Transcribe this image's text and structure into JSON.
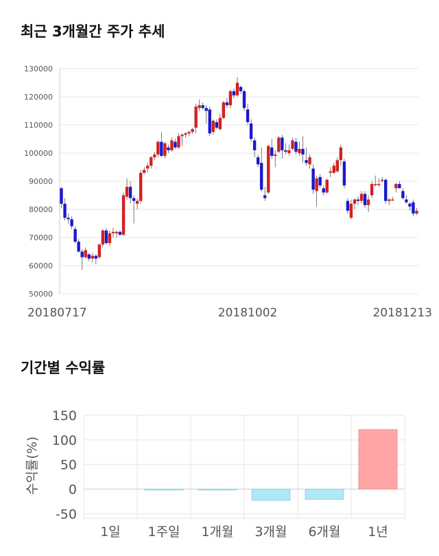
{
  "sections": {
    "price_trend_title": "최근 3개월간 주가 추세",
    "returns_title": "기간별 수익률"
  },
  "colors": {
    "up": "#d42020",
    "down": "#1a1acc",
    "wick": "#555555",
    "grid": "#e5e5e5",
    "axis_text": "#555555",
    "positive_bar": "#ffa5a5",
    "negative_bar": "#b0e8f5"
  },
  "chart_data": [
    {
      "type": "candlestick",
      "title": "최근 3개월간 주가 추세",
      "ylim": [
        50000,
        130000
      ],
      "yticks": [
        50000,
        60000,
        70000,
        80000,
        90000,
        100000,
        110000,
        120000,
        130000
      ],
      "x_tick_labels": [
        {
          "index": 0,
          "label": "20180717"
        },
        {
          "index": 54,
          "label": "20181002"
        },
        {
          "index": 103,
          "label": "20181213"
        }
      ],
      "grid": true,
      "ohlc": [
        [
          87500,
          88000,
          80500,
          82000
        ],
        [
          82000,
          84000,
          76000,
          77000
        ],
        [
          77000,
          78500,
          75000,
          76500
        ],
        [
          76500,
          77500,
          73000,
          74000
        ],
        [
          73000,
          74000,
          68000,
          68500
        ],
        [
          68500,
          69500,
          64500,
          65000
        ],
        [
          65000,
          66000,
          58500,
          63000
        ],
        [
          63000,
          66500,
          62500,
          65500
        ],
        [
          64000,
          64500,
          61500,
          62500
        ],
        [
          62500,
          64500,
          61000,
          63500
        ],
        [
          63500,
          64000,
          60500,
          62500
        ],
        [
          63000,
          68000,
          62500,
          67500
        ],
        [
          67500,
          73000,
          66500,
          72500
        ],
        [
          72500,
          73500,
          67500,
          68000
        ],
        [
          68000,
          72500,
          67000,
          71500
        ],
        [
          71500,
          73500,
          70000,
          72000
        ],
        [
          71500,
          72500,
          70000,
          72000
        ],
        [
          72000,
          72500,
          70500,
          71000
        ],
        [
          71000,
          86000,
          70500,
          85000
        ],
        [
          84500,
          91000,
          83500,
          88000
        ],
        [
          88000,
          90000,
          82000,
          84000
        ],
        [
          84000,
          85000,
          75000,
          83000
        ],
        [
          82000,
          84000,
          80000,
          83000
        ],
        [
          83000,
          94000,
          82000,
          93000
        ],
        [
          93000,
          95000,
          92500,
          94000
        ],
        [
          94500,
          96500,
          93000,
          95500
        ],
        [
          95500,
          99000,
          94500,
          98500
        ],
        [
          98500,
          100500,
          97500,
          99500
        ],
        [
          99500,
          104500,
          98500,
          104000
        ],
        [
          104000,
          107500,
          98500,
          99000
        ],
        [
          99000,
          104000,
          98000,
          103500
        ],
        [
          102000,
          103000,
          100000,
          101000
        ],
        [
          101000,
          105500,
          100500,
          104500
        ],
        [
          104000,
          105000,
          101500,
          102000
        ],
        [
          102000,
          107000,
          101500,
          106000
        ],
        [
          106000,
          107000,
          102500,
          106500
        ],
        [
          106500,
          107500,
          105500,
          107000
        ],
        [
          107000,
          108000,
          106000,
          107500
        ],
        [
          107500,
          109000,
          107000,
          108500
        ],
        [
          109000,
          117500,
          107000,
          116500
        ],
        [
          116000,
          119000,
          115000,
          117000
        ],
        [
          117000,
          118000,
          115500,
          116000
        ],
        [
          116000,
          117000,
          110500,
          115000
        ],
        [
          115500,
          116500,
          106000,
          107000
        ],
        [
          107500,
          112000,
          106500,
          111500
        ],
        [
          111000,
          112000,
          108500,
          109000
        ],
        [
          108500,
          114000,
          108000,
          112500
        ],
        [
          112500,
          118500,
          112000,
          118000
        ],
        [
          118000,
          119500,
          116000,
          117000
        ],
        [
          117000,
          122500,
          116000,
          122000
        ],
        [
          122000,
          123000,
          119500,
          120500
        ],
        [
          120500,
          127000,
          120000,
          125000
        ],
        [
          123500,
          124000,
          121000,
          122000
        ],
        [
          122000,
          122500,
          115000,
          116000
        ],
        [
          115500,
          117500,
          110000,
          111000
        ],
        [
          110500,
          112000,
          104000,
          105000
        ],
        [
          104500,
          105500,
          98500,
          101000
        ],
        [
          98500,
          99500,
          95000,
          96000
        ],
        [
          96500,
          102000,
          86500,
          87000
        ],
        [
          85000,
          88000,
          83000,
          84000
        ],
        [
          86000,
          103000,
          85500,
          102500
        ],
        [
          102000,
          105000,
          98000,
          99000
        ],
        [
          99000,
          101000,
          95000,
          99500
        ],
        [
          100500,
          106000,
          100000,
          105500
        ],
        [
          105500,
          106500,
          98000,
          101000
        ],
        [
          101000,
          103500,
          99500,
          100500
        ],
        [
          100000,
          103000,
          99000,
          101000
        ],
        [
          101500,
          105500,
          101000,
          104500
        ],
        [
          104000,
          105500,
          99500,
          100500
        ],
        [
          100000,
          104000,
          99000,
          101500
        ],
        [
          101500,
          106000,
          96500,
          99500
        ],
        [
          97500,
          102000,
          95500,
          96500
        ],
        [
          96000,
          99500,
          94500,
          98500
        ],
        [
          94500,
          96000,
          85500,
          87000
        ],
        [
          86500,
          92000,
          81000,
          91000
        ],
        [
          91500,
          92500,
          87500,
          88500
        ],
        [
          87500,
          88500,
          85000,
          86000
        ],
        [
          86000,
          91000,
          85500,
          90500
        ],
        [
          93000,
          95000,
          91500,
          93500
        ],
        [
          93000,
          96500,
          92500,
          95500
        ],
        [
          93500,
          98500,
          93000,
          97500
        ],
        [
          97500,
          103000,
          95500,
          102000
        ],
        [
          97000,
          98000,
          87500,
          88500
        ],
        [
          83000,
          84000,
          78500,
          79500
        ],
        [
          77000,
          83500,
          76500,
          82000
        ],
        [
          82000,
          84000,
          80000,
          83500
        ],
        [
          83500,
          84500,
          81500,
          83000
        ],
        [
          83000,
          86500,
          82000,
          85500
        ],
        [
          85500,
          86500,
          80500,
          81500
        ],
        [
          81500,
          85000,
          79000,
          83500
        ],
        [
          85000,
          90000,
          84000,
          89000
        ],
        [
          89000,
          92000,
          88000,
          89000
        ],
        [
          89000,
          91000,
          88000,
          89000
        ],
        [
          90500,
          91500,
          89500,
          90500
        ],
        [
          90500,
          91000,
          82000,
          83000
        ],
        [
          83000,
          84000,
          81500,
          83500
        ],
        [
          83500,
          84500,
          83000,
          83500
        ],
        [
          87500,
          89500,
          86000,
          89000
        ],
        [
          89000,
          90000,
          87500,
          87500
        ],
        [
          86500,
          87500,
          83500,
          84000
        ],
        [
          83500,
          85000,
          82000,
          82500
        ],
        [
          82000,
          82500,
          79500,
          81000
        ],
        [
          82500,
          83500,
          77500,
          78500
        ],
        [
          78500,
          80500,
          78000,
          79500
        ]
      ]
    },
    {
      "type": "bar",
      "categories": [
        "1일",
        "1주일",
        "1개월",
        "3개월",
        "6개월",
        "1년"
      ],
      "values": [
        0,
        -2,
        -2,
        -23,
        -21,
        121
      ],
      "ylabel": "수익률(%)",
      "ylim": [
        -55,
        150
      ],
      "yticks": [
        -50,
        0,
        50,
        100,
        150
      ],
      "grid": true
    }
  ]
}
